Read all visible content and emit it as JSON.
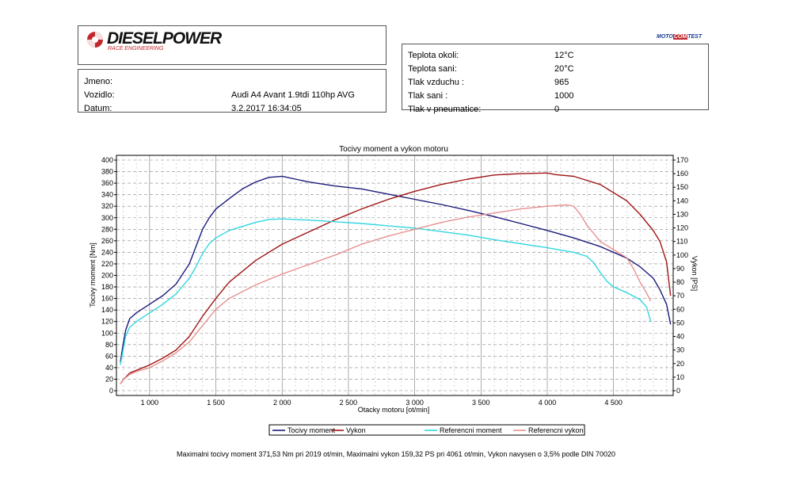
{
  "header": {
    "brand": "DIESELPOWER",
    "brand_sub": "RACE ENGINEERING",
    "badge_left": "MOTO",
    "badge_mid": "COM",
    "badge_right": "TEST"
  },
  "vehicle": {
    "name_label": "Jmeno:",
    "name_value": "",
    "vehicle_label": "Vozidlo:",
    "vehicle_value": "Audi A4 Avant 1.9tdi 110hp AVG",
    "date_label": "Datum:",
    "date_value": "3.2.2017 16:34:05"
  },
  "conditions": {
    "rows": [
      {
        "label": "Teplota okoli:",
        "value": "12°C"
      },
      {
        "label": "Teplota sani:",
        "value": "20°C"
      },
      {
        "label": "Tlak vzduchu :",
        "value": "965"
      },
      {
        "label": "Tlak sani :",
        "value": "1000"
      },
      {
        "label": "Tlak v pneumatice:",
        "value": "0"
      }
    ]
  },
  "footer": {
    "note": "Maximalni tocivy moment 371,53 Nm pri 2019 ot/min,  Maximalni vykon 159,32 PS pri 4061 ot/min,  Vykon navysen o 3,5% podle DIN 70020"
  },
  "colors": {
    "torque": "#1a1a7a",
    "power": "#a01515",
    "ref_torque": "#33d6e0",
    "ref_power": "#e89090"
  },
  "chart_data": {
    "type": "line",
    "title": "Tocivy moment a vykon motoru",
    "xlabel": "Otacky motoru [ot/min]",
    "ylabel": "Tocivy moment [Nm]",
    "y2label": "Vykon [PS]",
    "xlim": [
      750,
      4950
    ],
    "ylim": [
      0,
      400
    ],
    "y2lim": [
      0,
      170
    ],
    "x_ticks": [
      1000,
      1500,
      2000,
      2500,
      3000,
      3500,
      4000,
      4500
    ],
    "x_tick_labels": [
      "1 000",
      "1 500",
      "2 000",
      "2 500",
      "3 000",
      "3 500",
      "4 000",
      "4 500"
    ],
    "y_ticks": [
      0,
      20,
      40,
      60,
      80,
      100,
      120,
      140,
      160,
      180,
      200,
      220,
      240,
      260,
      280,
      300,
      320,
      340,
      360,
      380,
      400
    ],
    "y2_ticks": [
      0,
      10,
      20,
      30,
      40,
      50,
      60,
      70,
      80,
      90,
      100,
      110,
      120,
      130,
      140,
      150,
      160,
      170
    ],
    "grid": true,
    "legend_position": "bottom",
    "series": [
      {
        "name": "Tocivy moment",
        "axis": "left",
        "color": "#1a1a7a",
        "x": [
          780,
          800,
          820,
          850,
          900,
          1000,
          1100,
          1200,
          1300,
          1350,
          1400,
          1450,
          1500,
          1600,
          1700,
          1800,
          1900,
          2000,
          2019,
          2100,
          2200,
          2400,
          2600,
          2800,
          3000,
          3200,
          3400,
          3600,
          3800,
          4000,
          4200,
          4400,
          4600,
          4700,
          4800,
          4850,
          4900,
          4930
        ],
        "y": [
          50,
          80,
          105,
          125,
          135,
          150,
          165,
          185,
          220,
          250,
          280,
          300,
          315,
          333,
          350,
          362,
          370,
          372,
          371,
          367,
          362,
          355,
          350,
          341,
          332,
          323,
          313,
          302,
          290,
          278,
          265,
          250,
          230,
          215,
          195,
          175,
          150,
          115
        ]
      },
      {
        "name": "Vykon",
        "axis": "right",
        "color": "#a01515",
        "x": [
          780,
          800,
          850,
          900,
          1000,
          1100,
          1200,
          1300,
          1400,
          1500,
          1600,
          1800,
          2000,
          2200,
          2400,
          2600,
          2800,
          3000,
          3200,
          3400,
          3600,
          3800,
          4000,
          4061,
          4200,
          4400,
          4600,
          4700,
          4800,
          4850,
          4900,
          4930
        ],
        "y": [
          5,
          8,
          13,
          15,
          19,
          24,
          30,
          40,
          55,
          68,
          80,
          96,
          108,
          117,
          126,
          134,
          141,
          147,
          152,
          156,
          159,
          160,
          160.5,
          159.3,
          158,
          152,
          140,
          130,
          118,
          110,
          95,
          70
        ]
      },
      {
        "name": "Referencni moment",
        "axis": "left",
        "color": "#33d6e0",
        "x": [
          780,
          800,
          820,
          850,
          900,
          1000,
          1100,
          1200,
          1300,
          1350,
          1400,
          1450,
          1500,
          1600,
          1700,
          1800,
          1900,
          2000,
          2100,
          2200,
          2400,
          2600,
          2800,
          3000,
          3200,
          3400,
          3600,
          3800,
          4000,
          4200,
          4300,
          4350,
          4400,
          4450,
          4500,
          4600,
          4700,
          4750,
          4780
        ],
        "y": [
          45,
          70,
          95,
          110,
          120,
          135,
          150,
          168,
          195,
          215,
          238,
          255,
          265,
          278,
          285,
          292,
          297,
          298,
          297,
          296,
          293,
          290,
          286,
          282,
          276,
          270,
          262,
          255,
          248,
          240,
          233,
          222,
          205,
          190,
          180,
          170,
          158,
          145,
          120
        ]
      },
      {
        "name": "Referencni vykon",
        "axis": "right",
        "color": "#e89090",
        "x": [
          780,
          800,
          850,
          900,
          1000,
          1100,
          1200,
          1300,
          1400,
          1500,
          1600,
          1800,
          2000,
          2200,
          2400,
          2600,
          2800,
          3000,
          3200,
          3400,
          3600,
          3800,
          4000,
          4150,
          4200,
          4250,
          4300,
          4400,
          4500,
          4600,
          4650,
          4700,
          4750,
          4780
        ],
        "y": [
          5,
          8,
          12,
          14,
          17,
          22,
          28,
          36,
          48,
          60,
          68,
          78,
          86,
          93,
          100,
          108,
          114,
          119,
          124,
          128,
          131,
          134,
          136,
          137,
          136,
          130,
          122,
          110,
          104,
          98,
          90,
          80,
          72,
          66
        ]
      }
    ]
  }
}
